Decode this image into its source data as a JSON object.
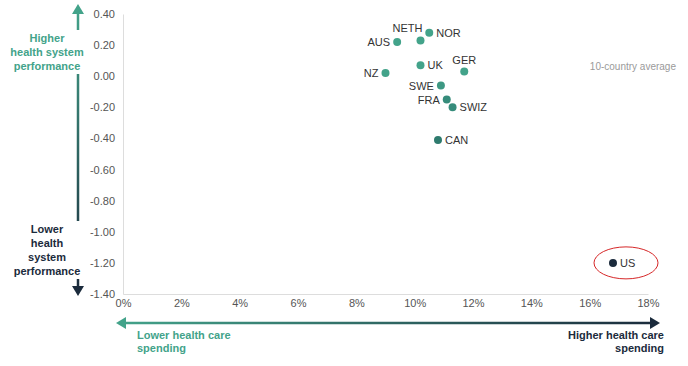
{
  "chart_data": {
    "type": "scatter",
    "x": [
      9.4,
      10.2,
      10.5,
      10.2,
      11.7,
      9.0,
      10.9,
      11.1,
      11.3,
      10.8,
      16.8
    ],
    "values": [
      0.22,
      0.23,
      0.28,
      0.07,
      0.03,
      0.02,
      -0.06,
      -0.15,
      -0.2,
      -0.41,
      -1.2
    ],
    "point_labels": [
      "AUS",
      "NETH",
      "NOR",
      "UK",
      "GER",
      "NZ",
      "SWE",
      "FRA",
      "SWIZ",
      "CAN",
      "US"
    ],
    "colors": [
      "#43a38a",
      "#43a38a",
      "#43a38a",
      "#43a38a",
      "#43a38a",
      "#43a38a",
      "#3d9883",
      "#368c7b",
      "#368c7b",
      "#2e7b6e",
      "#1b2b3c"
    ],
    "marker": "circle",
    "grid": false,
    "xlim": [
      0,
      18
    ],
    "ylim": [
      -1.4,
      0.4
    ],
    "xticks": [
      {
        "value": 0,
        "label": "0%"
      },
      {
        "value": 2,
        "label": "2%"
      },
      {
        "value": 4,
        "label": "4%"
      },
      {
        "value": 6,
        "label": "6%"
      },
      {
        "value": 8,
        "label": "8%"
      },
      {
        "value": 10,
        "label": "10%"
      },
      {
        "value": 12,
        "label": "12%"
      },
      {
        "value": 14,
        "label": "14%"
      },
      {
        "value": 16,
        "label": "16%"
      },
      {
        "value": 18,
        "label": "18%"
      }
    ],
    "yticks": [
      {
        "value": -1.4,
        "label": "-1.40"
      },
      {
        "value": -1.2,
        "label": "-1.20"
      },
      {
        "value": -1.0,
        "label": "-1.00"
      },
      {
        "value": -0.8,
        "label": "-0.80"
      },
      {
        "value": -0.6,
        "label": "-0.60"
      },
      {
        "value": -0.4,
        "label": "-0.40"
      },
      {
        "value": -0.2,
        "label": "-0.20"
      },
      {
        "value": 0,
        "label": "0.00"
      },
      {
        "value": 0.2,
        "label": "0.20"
      },
      {
        "value": 0.4,
        "label": "0.40"
      }
    ],
    "axis_labels": {
      "y_high": [
        "Higher",
        "health system",
        "performance"
      ],
      "y_low": [
        "Lower",
        "health",
        "system",
        "performance"
      ],
      "x_low": [
        "Lower health care",
        "spending"
      ],
      "x_high": [
        "Higher health care",
        "spending"
      ]
    },
    "annotations": [
      "10-country average"
    ],
    "highlight": "US"
  }
}
